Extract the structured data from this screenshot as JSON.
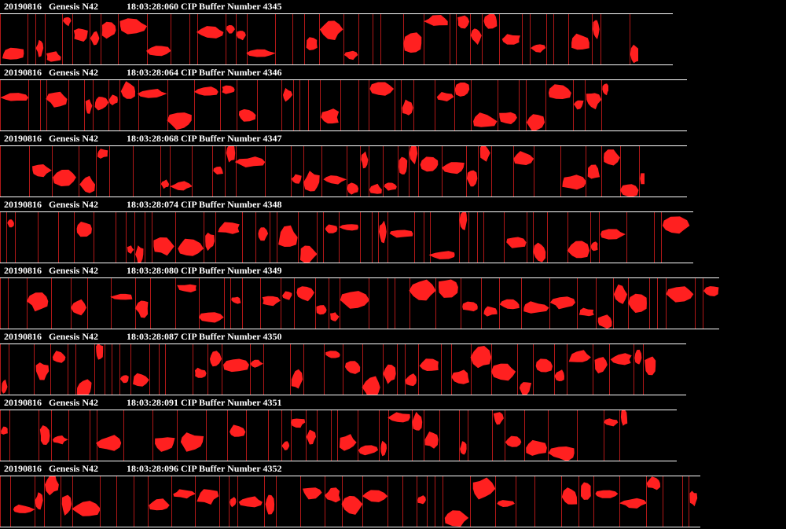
{
  "viewer": {
    "theme": {
      "background": "#000000",
      "text": "#ffffff",
      "particle": "#ff2020",
      "slice": "#b01818"
    },
    "buffers": [
      {
        "date": "20190816",
        "probe": "Genesis N42",
        "timestamp": "18:03:28:060",
        "label": "CIP Buffer Number 4345"
      },
      {
        "date": "20190816",
        "probe": "Genesis N42",
        "timestamp": "18:03:28:064",
        "label": "CIP Buffer Number 4346"
      },
      {
        "date": "20190816",
        "probe": "Genesis N42",
        "timestamp": "18:03:28:068",
        "label": "CIP Buffer Number 4347"
      },
      {
        "date": "20190816",
        "probe": "Genesis N42",
        "timestamp": "18:03:28:074",
        "label": "CIP Buffer Number 4348"
      },
      {
        "date": "20190816",
        "probe": "Genesis N42",
        "timestamp": "18:03:28:080",
        "label": "CIP Buffer Number 4349"
      },
      {
        "date": "20190816",
        "probe": "Genesis N42",
        "timestamp": "18:03:28:087",
        "label": "CIP Buffer Number 4350"
      },
      {
        "date": "20190816",
        "probe": "Genesis N42",
        "timestamp": "18:03:28:091",
        "label": "CIP Buffer Number 4351"
      },
      {
        "date": "20190816",
        "probe": "Genesis N42",
        "timestamp": "18:03:28:096",
        "label": "CIP Buffer Number 4352"
      }
    ]
  }
}
